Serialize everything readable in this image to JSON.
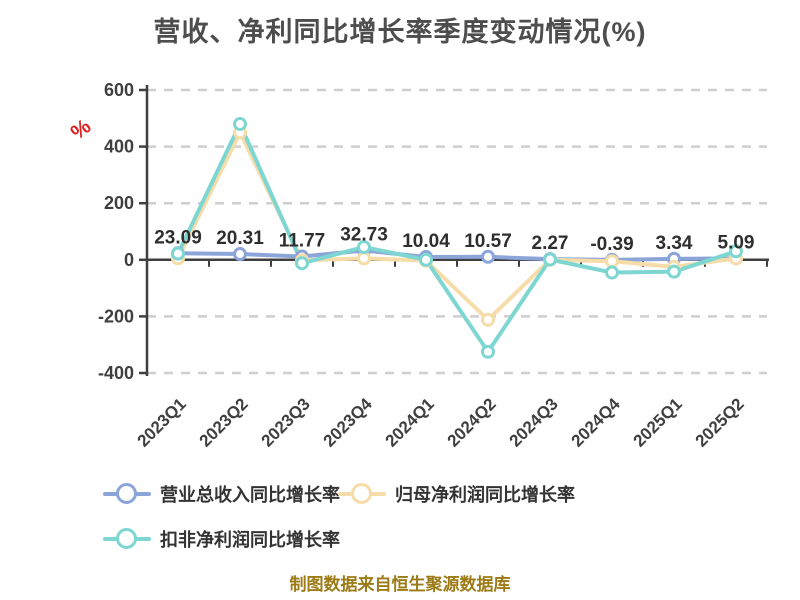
{
  "title": "营收、净利同比增长率季度变动情况(%)",
  "y_axis_unit": "%",
  "caption": "制图数据来自恒生聚源数据库",
  "colors": {
    "axis": "#3f3f3f",
    "grid": "#cfcfcf",
    "tick_label": "#3f3f3f",
    "data_label": "#2e2e2e",
    "title": "#4d4d4d",
    "caption": "#9c7b16",
    "unit_symbol": "#e02020",
    "background": "#ffffff"
  },
  "chart_data": {
    "type": "line",
    "title": "营收、净利同比增长率季度变动情况(%)",
    "categories": [
      "2023Q1",
      "2023Q2",
      "2023Q3",
      "2023Q4",
      "2024Q1",
      "2024Q2",
      "2024Q3",
      "2024Q4",
      "2025Q1",
      "2025Q2"
    ],
    "series": [
      {
        "name": "营业总收入同比增长率",
        "color": "#8ca5d8",
        "values": [
          23.09,
          20.31,
          11.77,
          32.73,
          10.04,
          10.57,
          2.27,
          -0.39,
          3.34,
          5.09
        ],
        "show_labels": true
      },
      {
        "name": "归母净利润同比增长率",
        "color": "#f6dca9",
        "values": [
          5,
          450,
          -2,
          5,
          -3,
          -212,
          0,
          -5,
          -25,
          5
        ],
        "show_labels": false
      },
      {
        "name": "扣非净利润同比增长率",
        "color": "#7dd6d2",
        "values": [
          22,
          480,
          -12,
          45,
          0,
          -325,
          1,
          -45,
          -42,
          30
        ],
        "show_labels": false
      }
    ],
    "ylim": [
      -400,
      600
    ],
    "yticks": [
      600,
      400,
      200,
      0,
      -200,
      -400
    ],
    "xlabel": "",
    "ylabel": "%",
    "grid": "horizontal-dashed",
    "legend_position": "bottom",
    "x_label_rotation": 45
  }
}
